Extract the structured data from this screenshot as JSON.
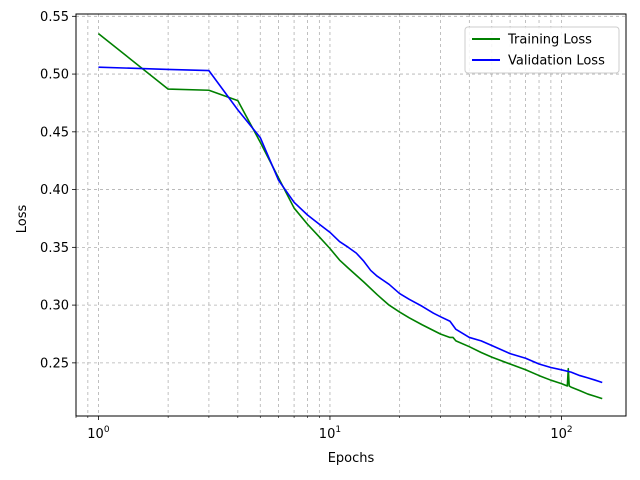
{
  "chart_data": {
    "type": "line",
    "xlabel": "Epochs",
    "ylabel": "Loss",
    "xscale": "log",
    "xlim": [
      0.8,
      190
    ],
    "ylim": [
      0.204,
      0.552
    ],
    "grid": true,
    "legend_position": "top-right",
    "x_ticks": [
      {
        "value": 1,
        "base": "10",
        "exp": "0"
      },
      {
        "value": 10,
        "base": "10",
        "exp": "1"
      },
      {
        "value": 100,
        "base": "10",
        "exp": "2"
      }
    ],
    "y_ticks": [
      "0.25",
      "0.30",
      "0.35",
      "0.40",
      "0.45",
      "0.50",
      "0.55"
    ],
    "series": [
      {
        "name": "Training Loss",
        "color": "#008000",
        "x": [
          1,
          2,
          3,
          4,
          5,
          6,
          7,
          8,
          9,
          10,
          11,
          12,
          14,
          16,
          18,
          20,
          22,
          25,
          28,
          30,
          33,
          34,
          35,
          40,
          45,
          50,
          60,
          70,
          80,
          90,
          100,
          106,
          107,
          108,
          110,
          120,
          130,
          140,
          150
        ],
        "y": [
          0.535,
          0.487,
          0.486,
          0.477,
          0.441,
          0.41,
          0.384,
          0.37,
          0.359,
          0.349,
          0.339,
          0.332,
          0.32,
          0.309,
          0.3,
          0.294,
          0.289,
          0.283,
          0.278,
          0.275,
          0.272,
          0.272,
          0.269,
          0.264,
          0.259,
          0.255,
          0.249,
          0.244,
          0.239,
          0.235,
          0.232,
          0.23,
          0.245,
          0.23,
          0.229,
          0.226,
          0.223,
          0.221,
          0.219
        ]
      },
      {
        "name": "Validation Loss",
        "color": "#0000ff",
        "x": [
          1,
          2,
          3,
          4,
          5,
          6,
          7,
          8,
          9,
          10,
          11,
          12,
          13,
          14,
          15,
          16,
          18,
          20,
          22,
          25,
          28,
          30,
          33,
          35,
          40,
          45,
          50,
          60,
          70,
          80,
          90,
          100,
          110,
          120,
          130,
          140,
          150
        ],
        "y": [
          0.506,
          0.504,
          0.503,
          0.469,
          0.445,
          0.408,
          0.389,
          0.378,
          0.37,
          0.363,
          0.355,
          0.35,
          0.345,
          0.338,
          0.33,
          0.325,
          0.318,
          0.31,
          0.305,
          0.299,
          0.293,
          0.29,
          0.286,
          0.279,
          0.272,
          0.269,
          0.265,
          0.258,
          0.254,
          0.249,
          0.246,
          0.244,
          0.242,
          0.239,
          0.237,
          0.235,
          0.233
        ]
      }
    ]
  }
}
